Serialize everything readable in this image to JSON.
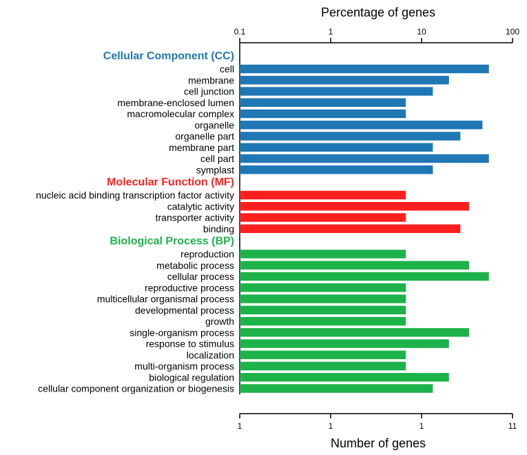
{
  "chart_data": {
    "type": "bar",
    "orientation": "horizontal",
    "top_axis": {
      "label": "Percentage of genes",
      "scale": "log",
      "range": [
        0.1,
        100
      ],
      "ticks": [
        "0.1",
        "1",
        "10",
        "100"
      ]
    },
    "bottom_axis": {
      "label": "Number of genes",
      "ticks": [
        "1",
        "1",
        "1",
        "11"
      ]
    },
    "groups": [
      {
        "name": "Cellular Component (CC)",
        "color": "#1f77b4",
        "categories": [
          "cell",
          "membrane",
          "cell junction",
          "membrane-enclosed lumen",
          "macromolecular complex",
          "organelle",
          "organelle part",
          "membrane part",
          "cell part",
          "symplast"
        ],
        "values": [
          55,
          20,
          13.3,
          6.7,
          6.7,
          46.7,
          26.7,
          13.3,
          55,
          13.3
        ]
      },
      {
        "name": "Molecular Function (MF)",
        "color": "#ff1f1f",
        "categories": [
          "nucleic acid binding transcription factor activity",
          "catalytic activity",
          "transporter activity",
          "binding"
        ],
        "values": [
          6.7,
          33.3,
          6.7,
          26.7
        ]
      },
      {
        "name": "Biological Process (BP)",
        "color": "#1db34a",
        "categories": [
          "reproduction",
          "metabolic process",
          "cellular process",
          "reproductive process",
          "multicellular organismal process",
          "developmental process",
          "growth",
          "single-organism process",
          "response to stimulus",
          "localization",
          "multi-organism process",
          "biological regulation",
          "cellular component organization or biogenesis"
        ],
        "values": [
          6.7,
          33.3,
          55,
          6.7,
          6.7,
          6.7,
          6.7,
          33.3,
          20,
          6.7,
          6.7,
          20,
          13.3
        ]
      }
    ]
  }
}
